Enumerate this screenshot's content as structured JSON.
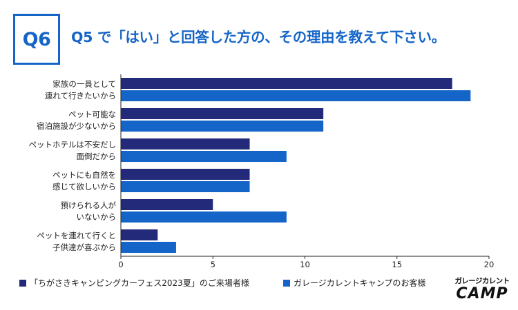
{
  "badge": "Q6",
  "title": "Q5 で「はい」と回答した方の、その理由を教えて下さい。",
  "colors": {
    "series1": "#232a7a",
    "series2": "#1565c8",
    "accent": "#1565c8"
  },
  "chart_data": {
    "type": "bar",
    "orientation": "horizontal",
    "categories": [
      [
        "家族の一員として",
        "連れて行きたいから"
      ],
      [
        "ペット可能な",
        "宿泊施設が少ないから"
      ],
      [
        "ペットホテルは不安だし",
        "面倒だから"
      ],
      [
        "ペットにも自然を",
        "感じて欲しいから"
      ],
      [
        "預けられる人が",
        "いないから"
      ],
      [
        "ペットを連れて行くと",
        "子供達が喜ぶから"
      ]
    ],
    "series": [
      {
        "name": "「ちがさきキャンピングカーフェス2023夏」のご来場者様",
        "values": [
          18,
          11,
          7,
          7,
          5,
          2
        ]
      },
      {
        "name": "ガレージカレントキャンプのお客様",
        "values": [
          19,
          11,
          9,
          7,
          9,
          3
        ]
      }
    ],
    "xlim": [
      0,
      20
    ],
    "xticks": [
      0,
      5,
      10,
      15,
      20
    ],
    "grid": false,
    "legend_position": "bottom"
  },
  "logo": {
    "top": "ガレージカレント",
    "main": "CAMP"
  }
}
